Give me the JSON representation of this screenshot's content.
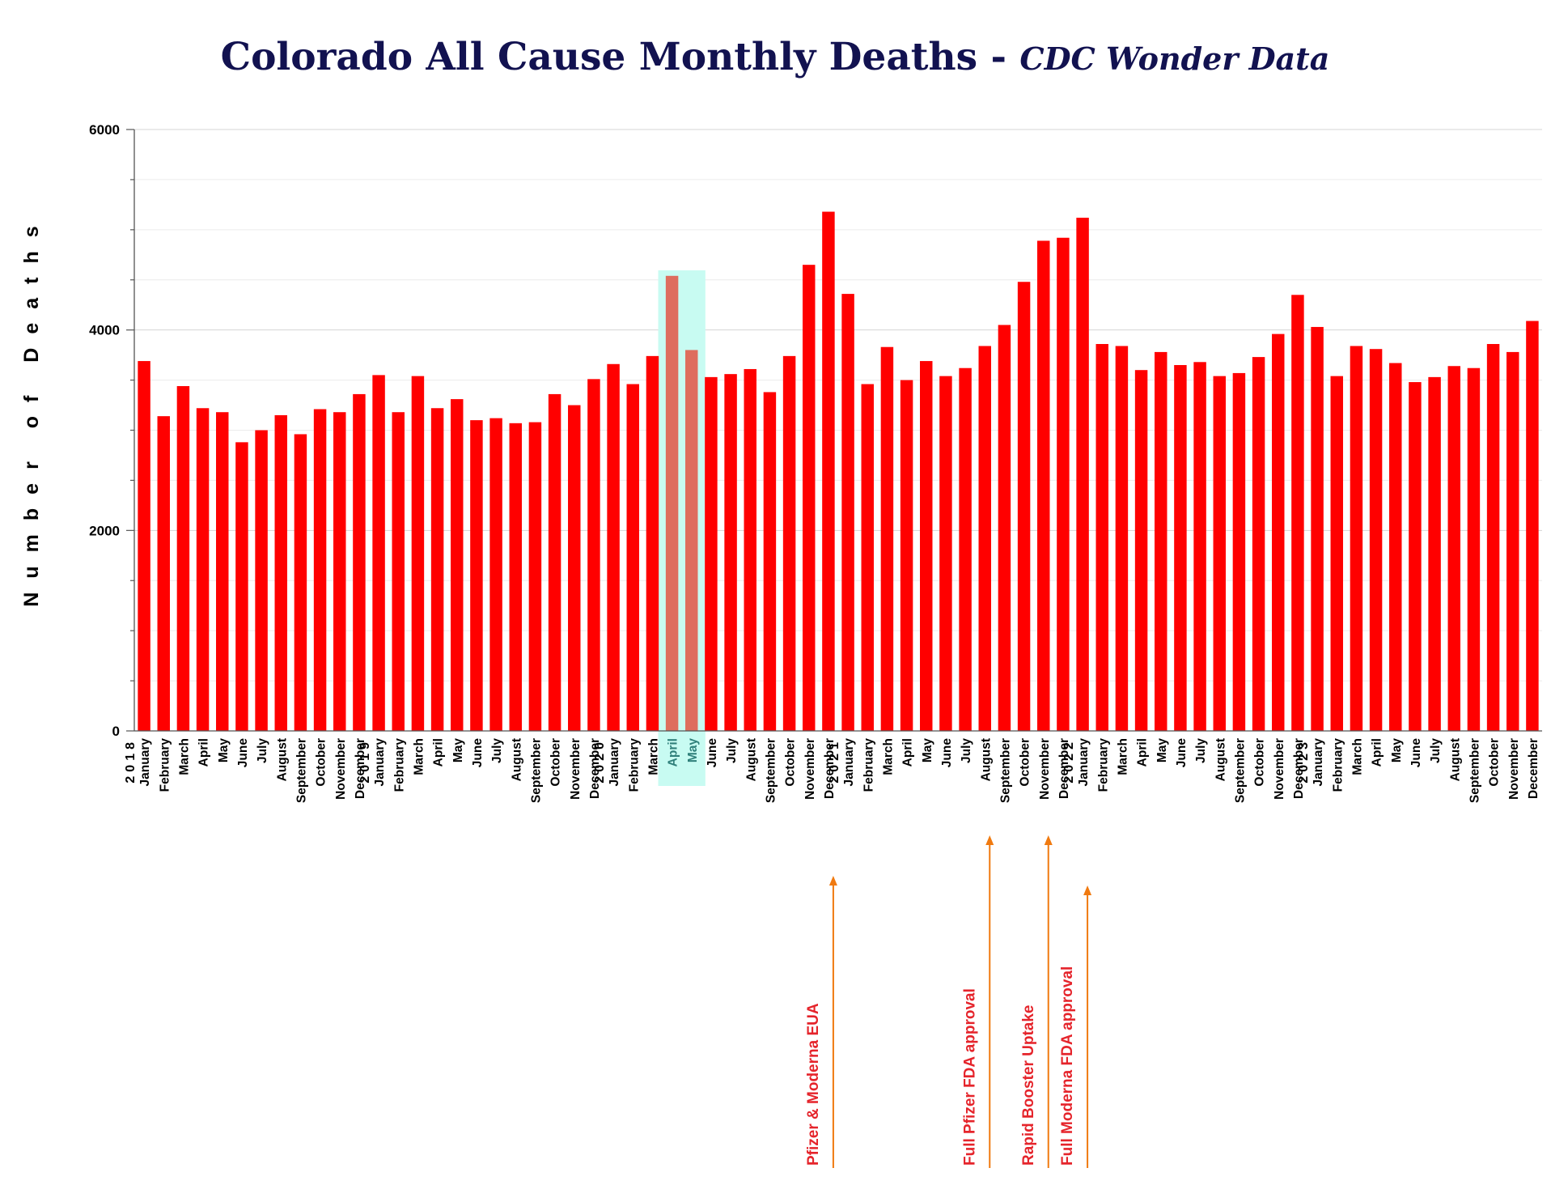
{
  "chart_data": {
    "type": "bar",
    "title": "Colorado All Cause Monthly Deaths - ",
    "subtitle": "CDC Wonder Data",
    "ylabel": "Number of Deaths",
    "xlabel": "",
    "ylim": [
      0,
      6000
    ],
    "yticks": [
      "0",
      "2000",
      "4000",
      "6000"
    ],
    "bar_color": "#ff0000",
    "highlight_bar_color": "#de6d5e",
    "highlight_box_color": "#c8fbf2",
    "annotation_color": "#e5242b",
    "arrow_color": "#f07a10",
    "title_color": "#121250",
    "categories": [
      "January",
      "February",
      "March",
      "April",
      "May",
      "June",
      "July",
      "August",
      "September",
      "October",
      "November",
      "December",
      "January",
      "February",
      "March",
      "April",
      "May",
      "June",
      "July",
      "August",
      "September",
      "October",
      "November",
      "December",
      "January",
      "February",
      "March",
      "April",
      "May",
      "June",
      "July",
      "August",
      "September",
      "October",
      "November",
      "December",
      "January",
      "February",
      "March",
      "April",
      "May",
      "June",
      "July",
      "August",
      "September",
      "October",
      "November",
      "December",
      "January",
      "February",
      "March",
      "April",
      "May",
      "June",
      "July",
      "August",
      "September",
      "October",
      "November",
      "December",
      "January",
      "February",
      "March",
      "April",
      "May",
      "June",
      "July",
      "August",
      "September",
      "October",
      "November",
      "December"
    ],
    "years": [
      {
        "label": "2018",
        "index": 0
      },
      {
        "label": "2019",
        "index": 12
      },
      {
        "label": "2020",
        "index": 24
      },
      {
        "label": "2021",
        "index": 36
      },
      {
        "label": "2022",
        "index": 48
      },
      {
        "label": "2023",
        "index": 60
      }
    ],
    "values": [
      3690,
      3140,
      3440,
      3220,
      3180,
      2880,
      3000,
      3150,
      2960,
      3210,
      3180,
      3360,
      3550,
      3180,
      3540,
      3220,
      3310,
      3100,
      3120,
      3070,
      3080,
      3360,
      3250,
      3510,
      3660,
      3460,
      3740,
      4540,
      3800,
      3530,
      3560,
      3610,
      3380,
      3740,
      4650,
      5180,
      4360,
      3460,
      3830,
      3500,
      3690,
      3540,
      3620,
      3840,
      4050,
      4480,
      4890,
      4920,
      5120,
      3860,
      3840,
      3600,
      3780,
      3650,
      3680,
      3540,
      3570,
      3730,
      3960,
      4350,
      4030,
      3540,
      3840,
      3810,
      3670,
      3480,
      3530,
      3640,
      3620,
      3860,
      3780,
      4090
    ],
    "highlight_indices": [
      27,
      28
    ],
    "annotations": [
      {
        "text": "Pfizer & Moderna EUA",
        "index": 35
      },
      {
        "text": "Full Pfizer FDA approval",
        "index": 43
      },
      {
        "text": "Rapid Booster Uptake",
        "index": 46
      },
      {
        "text": "Full Moderna FDA approval",
        "index": 48
      }
    ]
  }
}
